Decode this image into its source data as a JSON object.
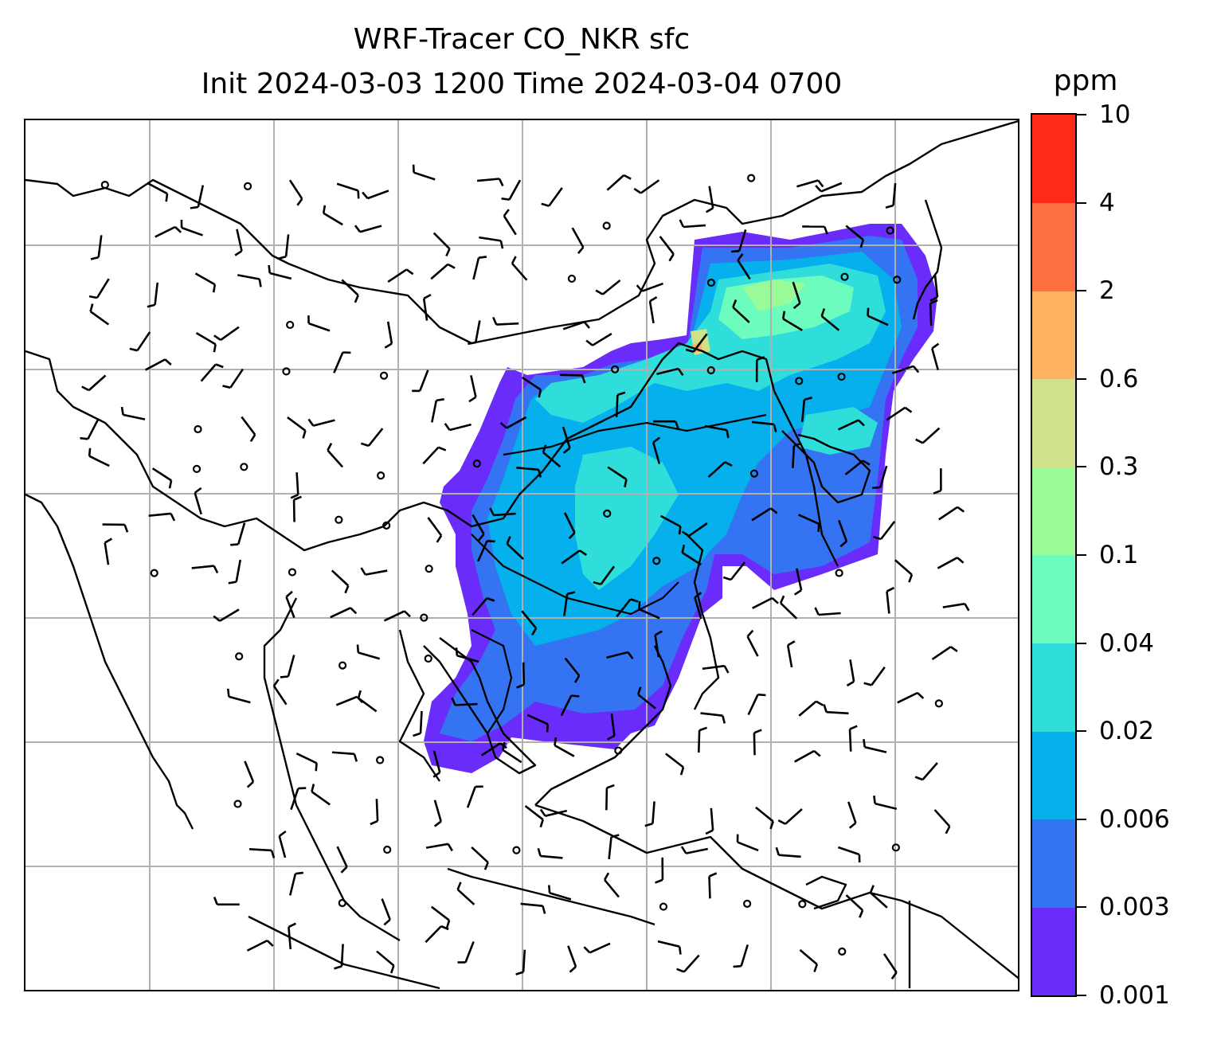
{
  "title": {
    "line1": "WRF-Tracer CO_NKR sfc",
    "line2": "Init 2024-03-03 1200 Time 2024-03-04 0700"
  },
  "colorbar": {
    "unit": "ppm",
    "levels": [
      "0.001",
      "0.003",
      "0.006",
      "0.02",
      "0.04",
      "0.1",
      "0.3",
      "0.6",
      "2",
      "4",
      "10"
    ],
    "colors": [
      "#6a2cfa",
      "#3474f3",
      "#05b0ec",
      "#2fdddb",
      "#6bfcbe",
      "#98fb98",
      "#cfe28a",
      "#feb160",
      "#ff7140",
      "#ff2b17"
    ]
  },
  "map": {
    "type": "map",
    "projection": "lat-lon",
    "gridlines": true,
    "field": "CO_NKR surface tracer concentration",
    "overlays": [
      "coastlines",
      "country borders",
      "wind barbs",
      "contour lines"
    ]
  }
}
